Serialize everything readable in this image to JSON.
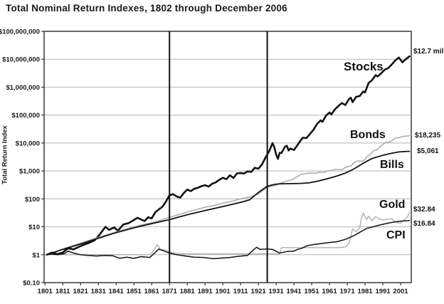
{
  "title": "Total Nominal Return Indexes, 1802 through December 2006",
  "y_axis_title": "Total Return Index",
  "colors": {
    "black_line": "#121212",
    "gray_line": "#a9a9a9",
    "gridline": "#b3b3b3",
    "border": "#1a1a1a",
    "marker_line": "#111111",
    "text": "#1a1a1a"
  },
  "chart_data": {
    "type": "line",
    "title": "Total Nominal Return Indexes, 1802 through December 2006",
    "xlabel": "",
    "ylabel": "Total Return Index",
    "y_scale": "log",
    "grid": "horizontal-decades",
    "xlim": [
      1800.5,
      2007
    ],
    "ylim": [
      0.1,
      100000000
    ],
    "x_ticks": [
      1801,
      1811,
      1821,
      1831,
      1841,
      1851,
      1861,
      1871,
      1881,
      1891,
      1901,
      1911,
      1921,
      1931,
      1941,
      1951,
      1961,
      1971,
      1981,
      1991,
      2001
    ],
    "y_ticks": [
      {
        "value": 0.1,
        "label": "$0.10"
      },
      {
        "value": 1,
        "label": "$1"
      },
      {
        "value": 10,
        "label": "$10"
      },
      {
        "value": 100,
        "label": "$100"
      },
      {
        "value": 1000,
        "label": "$1,000"
      },
      {
        "value": 10000,
        "label": "$10,000"
      },
      {
        "value": 100000,
        "label": "$100,000"
      },
      {
        "value": 1000000,
        "label": "$1,000,000"
      },
      {
        "value": 10000000,
        "label": "$10,000,000"
      },
      {
        "value": 100000000,
        "label": "$100,000,000"
      }
    ],
    "marker_years": [
      1871,
      1926
    ],
    "series": [
      {
        "name": "stocks",
        "label": "Stocks",
        "end_label": "$12.7 mil",
        "color": "#121212",
        "width": 2.6,
        "points": [
          [
            1802,
            1
          ],
          [
            1805,
            1.2
          ],
          [
            1808,
            1.05
          ],
          [
            1811,
            1.2
          ],
          [
            1814,
            1.7
          ],
          [
            1817,
            1.55
          ],
          [
            1820,
            1.9
          ],
          [
            1823,
            2.3
          ],
          [
            1826,
            2.7
          ],
          [
            1829,
            3.3
          ],
          [
            1832,
            5.5
          ],
          [
            1835,
            10
          ],
          [
            1837,
            7.8
          ],
          [
            1840,
            9.5
          ],
          [
            1842,
            7.2
          ],
          [
            1845,
            12
          ],
          [
            1848,
            13.5
          ],
          [
            1850,
            16
          ],
          [
            1853,
            21
          ],
          [
            1857,
            16
          ],
          [
            1859,
            22
          ],
          [
            1861,
            20
          ],
          [
            1863,
            33
          ],
          [
            1865,
            42
          ],
          [
            1867,
            52
          ],
          [
            1869,
            80
          ],
          [
            1871,
            135
          ],
          [
            1873,
            148
          ],
          [
            1875,
            122
          ],
          [
            1877,
            110
          ],
          [
            1879,
            160
          ],
          [
            1881,
            215
          ],
          [
            1883,
            190
          ],
          [
            1885,
            230
          ],
          [
            1887,
            250
          ],
          [
            1889,
            285
          ],
          [
            1891,
            310
          ],
          [
            1893,
            275
          ],
          [
            1895,
            345
          ],
          [
            1897,
            390
          ],
          [
            1899,
            480
          ],
          [
            1901,
            570
          ],
          [
            1903,
            510
          ],
          [
            1905,
            700
          ],
          [
            1907,
            560
          ],
          [
            1909,
            820
          ],
          [
            1911,
            840
          ],
          [
            1913,
            810
          ],
          [
            1915,
            970
          ],
          [
            1917,
            920
          ],
          [
            1919,
            1300
          ],
          [
            1921,
            1200
          ],
          [
            1923,
            1700
          ],
          [
            1925,
            3000
          ],
          [
            1927,
            5000
          ],
          [
            1929,
            10000
          ],
          [
            1930,
            6900
          ],
          [
            1931,
            3900
          ],
          [
            1932,
            2700
          ],
          [
            1933,
            4500
          ],
          [
            1934,
            4400
          ],
          [
            1936,
            7400
          ],
          [
            1937,
            8000
          ],
          [
            1938,
            5400
          ],
          [
            1939,
            6400
          ],
          [
            1941,
            5600
          ],
          [
            1943,
            8500
          ],
          [
            1945,
            13000
          ],
          [
            1946,
            15500
          ],
          [
            1948,
            15000
          ],
          [
            1950,
            21000
          ],
          [
            1952,
            30000
          ],
          [
            1954,
            48000
          ],
          [
            1956,
            65000
          ],
          [
            1957,
            57000
          ],
          [
            1959,
            95000
          ],
          [
            1961,
            125000
          ],
          [
            1962,
            105000
          ],
          [
            1964,
            160000
          ],
          [
            1966,
            210000
          ],
          [
            1968,
            270000
          ],
          [
            1970,
            230000
          ],
          [
            1972,
            380000
          ],
          [
            1973,
            420000
          ],
          [
            1974,
            290000
          ],
          [
            1976,
            450000
          ],
          [
            1978,
            480000
          ],
          [
            1980,
            700000
          ],
          [
            1981,
            650000
          ],
          [
            1983,
            1400000
          ],
          [
            1985,
            1800000
          ],
          [
            1987,
            2700000
          ],
          [
            1988,
            2400000
          ],
          [
            1990,
            3100000
          ],
          [
            1992,
            4200000
          ],
          [
            1994,
            4800000
          ],
          [
            1996,
            6500000
          ],
          [
            1998,
            9000000
          ],
          [
            2000,
            11500000
          ],
          [
            2001,
            9500000
          ],
          [
            2002,
            7800000
          ],
          [
            2004,
            10200000
          ],
          [
            2006,
            12700000
          ]
        ]
      },
      {
        "name": "bonds",
        "label": "Bonds",
        "end_label": "$18,235",
        "color": "#a9a9a9",
        "width": 1.5,
        "points": [
          [
            1802,
            1
          ],
          [
            1811,
            1.6
          ],
          [
            1821,
            2.6
          ],
          [
            1831,
            4.2
          ],
          [
            1841,
            6.5
          ],
          [
            1851,
            10
          ],
          [
            1856,
            12
          ],
          [
            1861,
            14
          ],
          [
            1866,
            17
          ],
          [
            1871,
            22
          ],
          [
            1876,
            27
          ],
          [
            1881,
            34
          ],
          [
            1886,
            41
          ],
          [
            1891,
            50
          ],
          [
            1896,
            58
          ],
          [
            1901,
            70
          ],
          [
            1906,
            82
          ],
          [
            1911,
            100
          ],
          [
            1916,
            115
          ],
          [
            1921,
            150
          ],
          [
            1926,
            260
          ],
          [
            1929,
            285
          ],
          [
            1932,
            330
          ],
          [
            1936,
            420
          ],
          [
            1940,
            490
          ],
          [
            1945,
            750
          ],
          [
            1950,
            850
          ],
          [
            1953,
            830
          ],
          [
            1955,
            900
          ],
          [
            1958,
            880
          ],
          [
            1960,
            1000
          ],
          [
            1963,
            1080
          ],
          [
            1965,
            1150
          ],
          [
            1968,
            1100
          ],
          [
            1970,
            1350
          ],
          [
            1973,
            1500
          ],
          [
            1975,
            2000
          ],
          [
            1977,
            2300
          ],
          [
            1979,
            2200
          ],
          [
            1980,
            2400
          ],
          [
            1981,
            2500
          ],
          [
            1982,
            3200
          ],
          [
            1984,
            3900
          ],
          [
            1986,
            5600
          ],
          [
            1987,
            5400
          ],
          [
            1988,
            6000
          ],
          [
            1990,
            8000
          ],
          [
            1992,
            9800
          ],
          [
            1993,
            11000
          ],
          [
            1994,
            10500
          ],
          [
            1996,
            12000
          ],
          [
            1998,
            15000
          ],
          [
            2000,
            15500
          ],
          [
            2002,
            17200
          ],
          [
            2004,
            17800
          ],
          [
            2006,
            18235
          ]
        ]
      },
      {
        "name": "bills",
        "label": "Bills",
        "end_label": "$5,061",
        "color": "#121212",
        "width": 1.8,
        "points": [
          [
            1802,
            1
          ],
          [
            1811,
            1.55
          ],
          [
            1821,
            2.4
          ],
          [
            1831,
            3.9
          ],
          [
            1841,
            6.2
          ],
          [
            1851,
            9.2
          ],
          [
            1861,
            13
          ],
          [
            1871,
            18
          ],
          [
            1881,
            27
          ],
          [
            1891,
            38
          ],
          [
            1901,
            53
          ],
          [
            1911,
            75
          ],
          [
            1916,
            92
          ],
          [
            1921,
            170
          ],
          [
            1926,
            285
          ],
          [
            1930,
            330
          ],
          [
            1933,
            345
          ],
          [
            1937,
            350
          ],
          [
            1941,
            352
          ],
          [
            1945,
            358
          ],
          [
            1950,
            380
          ],
          [
            1955,
            440
          ],
          [
            1960,
            530
          ],
          [
            1965,
            650
          ],
          [
            1970,
            840
          ],
          [
            1975,
            1200
          ],
          [
            1980,
            1900
          ],
          [
            1985,
            2800
          ],
          [
            1990,
            3500
          ],
          [
            1995,
            4200
          ],
          [
            2000,
            4800
          ],
          [
            2003,
            4950
          ],
          [
            2006,
            5061
          ]
        ]
      },
      {
        "name": "gold",
        "label": "Gold",
        "end_label": "$32.84",
        "color": "#b0b0b0",
        "width": 1.4,
        "points": [
          [
            1802,
            1
          ],
          [
            1860,
            1
          ],
          [
            1862,
            1.35
          ],
          [
            1864,
            2.3
          ],
          [
            1866,
            1.55
          ],
          [
            1869,
            1.45
          ],
          [
            1871,
            1.25
          ],
          [
            1874,
            1.15
          ],
          [
            1877,
            1.1
          ],
          [
            1879,
            1.07
          ],
          [
            1914,
            1.07
          ],
          [
            1933,
            1.07
          ],
          [
            1934,
            1.8
          ],
          [
            1967,
            1.8
          ],
          [
            1970,
            1.9
          ],
          [
            1972,
            2.6
          ],
          [
            1974,
            8.5
          ],
          [
            1976,
            6.5
          ],
          [
            1978,
            9.5
          ],
          [
            1979,
            21
          ],
          [
            1980,
            31
          ],
          [
            1981,
            23
          ],
          [
            1982,
            18
          ],
          [
            1983,
            24
          ],
          [
            1985,
            16.5
          ],
          [
            1987,
            23
          ],
          [
            1989,
            19
          ],
          [
            1991,
            17.5
          ],
          [
            1993,
            18.5
          ],
          [
            1996,
            19.5
          ],
          [
            1998,
            15
          ],
          [
            1999,
            14
          ],
          [
            2001,
            13.5
          ],
          [
            2003,
            18
          ],
          [
            2005,
            23
          ],
          [
            2006,
            32.84
          ]
        ]
      },
      {
        "name": "cpi",
        "label": "CPI",
        "end_label": "$16.84",
        "color": "#121212",
        "width": 1.5,
        "points": [
          [
            1802,
            1
          ],
          [
            1805,
            1.05
          ],
          [
            1808,
            1
          ],
          [
            1812,
            1.1
          ],
          [
            1814,
            1.35
          ],
          [
            1817,
            1.15
          ],
          [
            1821,
            1
          ],
          [
            1825,
            0.95
          ],
          [
            1830,
            0.9
          ],
          [
            1835,
            0.95
          ],
          [
            1839,
            0.92
          ],
          [
            1843,
            0.75
          ],
          [
            1847,
            0.82
          ],
          [
            1851,
            0.74
          ],
          [
            1855,
            0.85
          ],
          [
            1860,
            0.8
          ],
          [
            1862,
            1.05
          ],
          [
            1865,
            1.6
          ],
          [
            1868,
            1.35
          ],
          [
            1871,
            1.15
          ],
          [
            1875,
            1
          ],
          [
            1880,
            0.9
          ],
          [
            1885,
            0.82
          ],
          [
            1890,
            0.8
          ],
          [
            1896,
            0.72
          ],
          [
            1900,
            0.76
          ],
          [
            1905,
            0.8
          ],
          [
            1910,
            0.88
          ],
          [
            1915,
            0.95
          ],
          [
            1918,
            1.45
          ],
          [
            1920,
            1.85
          ],
          [
            1922,
            1.55
          ],
          [
            1926,
            1.6
          ],
          [
            1929,
            1.55
          ],
          [
            1933,
            1.15
          ],
          [
            1937,
            1.3
          ],
          [
            1941,
            1.35
          ],
          [
            1943,
            1.55
          ],
          [
            1945,
            1.65
          ],
          [
            1948,
            2.05
          ],
          [
            1950,
            2.2
          ],
          [
            1955,
            2.45
          ],
          [
            1960,
            2.7
          ],
          [
            1965,
            2.9
          ],
          [
            1970,
            3.55
          ],
          [
            1975,
            4.9
          ],
          [
            1980,
            7.5
          ],
          [
            1982,
            8.8
          ],
          [
            1985,
            9.8
          ],
          [
            1990,
            11.9
          ],
          [
            1995,
            13.9
          ],
          [
            2000,
            15.7
          ],
          [
            2006,
            16.84
          ]
        ]
      }
    ]
  }
}
